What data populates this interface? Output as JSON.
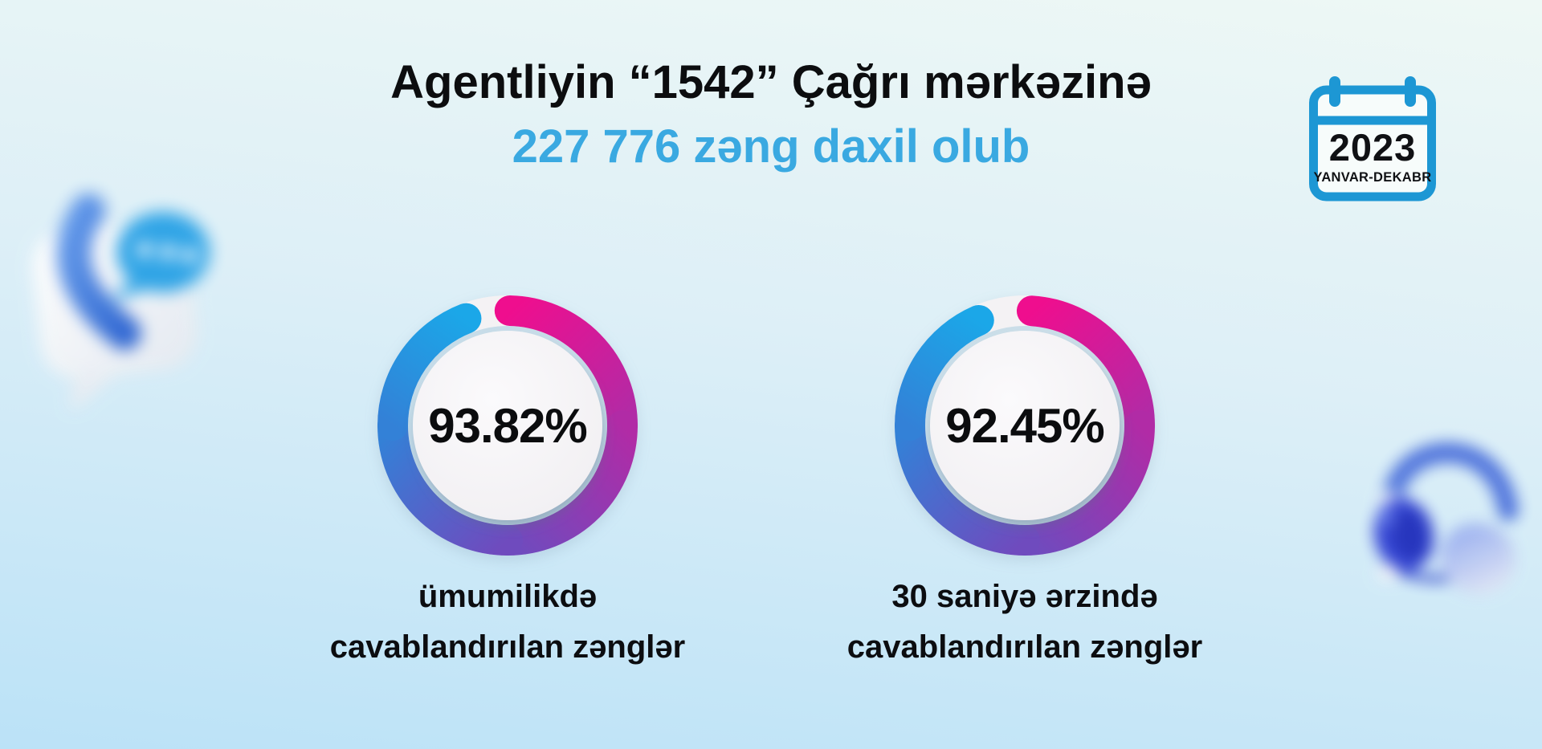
{
  "header": {
    "title_line1": "Agentliyin “1542” Çağrı mərkəzinə",
    "title_line2": "227 776 zəng daxil olub"
  },
  "calendar": {
    "year": "2023",
    "period": "YANVAR-DEKABR"
  },
  "chart_data": [
    {
      "type": "donut",
      "value": 93.82,
      "label": "93.82%",
      "caption": [
        "ümumilikdə",
        "cavablandırılan zənglər"
      ],
      "gap_position": "top"
    },
    {
      "type": "donut",
      "value": 92.45,
      "label": "92.45%",
      "caption": [
        "30 saniyə ərzində",
        "cavablandırılan zənglər"
      ],
      "gap_position": "top"
    }
  ],
  "colors": {
    "background_top": "#eef8f5",
    "background_mid": "#ddeff7",
    "background_bottom": "#bbe2f7",
    "title_accent": "#3aa9e1",
    "text_dark": "#0c0d0f",
    "calendar_blue": "#1d97d4",
    "ring": [
      "#ef0e8e",
      "#b12ba6",
      "#6f4bbe",
      "#3381d7",
      "#1ba7e8"
    ],
    "ring_track": "#f4f2f4",
    "inner_circle": "#f7f6f7"
  },
  "decor": {
    "left_icon": "phone-chat-3d",
    "right_icon": "headphones-3d"
  }
}
